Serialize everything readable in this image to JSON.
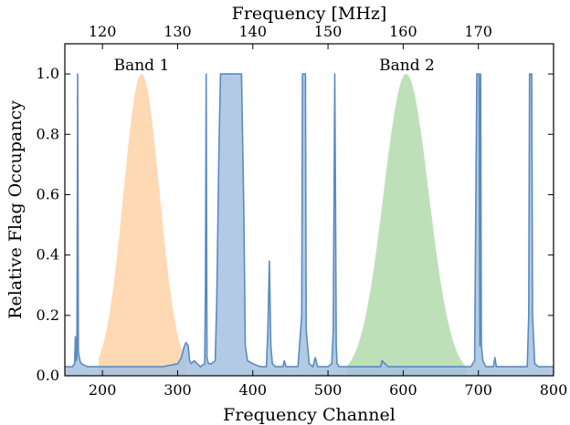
{
  "chart_data": {
    "type": "area",
    "xlabel": "Frequency Channel",
    "ylabel": "Relative Flag Occupancy",
    "top_xlabel": "Frequency [MHz]",
    "xlim": [
      150,
      800
    ],
    "ylim": [
      0,
      1.1
    ],
    "x_ticks": [
      200,
      300,
      400,
      500,
      600,
      700,
      800
    ],
    "y_ticks": [
      0.0,
      0.2,
      0.4,
      0.6,
      0.8,
      1.0
    ],
    "y_tick_labels": [
      "0.0",
      "0.2",
      "0.4",
      "0.6",
      "0.8",
      "1.0"
    ],
    "top_ticks": [
      120,
      130,
      140,
      150,
      160,
      170
    ],
    "top_axis_map": {
      "channel_at_120MHz": 200,
      "channel_per_MHz": 10
    },
    "grid": false,
    "annotations": [
      {
        "text": "Band 1",
        "x": 252,
        "y": 1.03
      },
      {
        "text": "Band 2",
        "x": 605,
        "y": 1.03
      }
    ],
    "bands": [
      {
        "name": "Band 1",
        "center": 252,
        "sigma": 24,
        "xmin": 195,
        "xmax": 310,
        "color": "#ffcc99"
      },
      {
        "name": "Band 2",
        "center": 604,
        "sigma": 30,
        "xmin": 525,
        "xmax": 685,
        "color": "#a8d5a2"
      }
    ],
    "series": [
      {
        "color": "#5b8bbf",
        "fill": "#a4c1df",
        "x": [
          150,
          160,
          163,
          164,
          165,
          166,
          167,
          168,
          170,
          172,
          180,
          200,
          220,
          240,
          260,
          280,
          300,
          305,
          308,
          311,
          314,
          316,
          318,
          322,
          326,
          330,
          336,
          337,
          338,
          339,
          341,
          345,
          350,
          352,
          355,
          357,
          359,
          362,
          385,
          388,
          390,
          393,
          400,
          410,
          418,
          420,
          422,
          424,
          426,
          430,
          440,
          442,
          444,
          450,
          460,
          465,
          466,
          467,
          470,
          471,
          475,
          480,
          483,
          486,
          490,
          500,
          505,
          507,
          508,
          509,
          510,
          511,
          512,
          515,
          520,
          540,
          560,
          570,
          572,
          580,
          600,
          620,
          640,
          660,
          680,
          690,
          695,
          697,
          698,
          701,
          702,
          703,
          704,
          706,
          710,
          720,
          722,
          724,
          730,
          750,
          765,
          767,
          768,
          771,
          772,
          775,
          780,
          800
        ],
        "y": [
          0.03,
          0.03,
          0.04,
          0.13,
          0.05,
          0.06,
          1.0,
          0.08,
          0.05,
          0.04,
          0.03,
          0.03,
          0.03,
          0.03,
          0.03,
          0.03,
          0.04,
          0.06,
          0.09,
          0.11,
          0.1,
          0.05,
          0.04,
          0.05,
          0.04,
          0.03,
          0.04,
          0.3,
          1.0,
          0.06,
          0.04,
          0.04,
          0.05,
          0.25,
          0.75,
          1.0,
          1.0,
          1.0,
          1.0,
          0.55,
          0.1,
          0.05,
          0.04,
          0.03,
          0.03,
          0.15,
          0.38,
          0.1,
          0.04,
          0.03,
          0.03,
          0.05,
          0.03,
          0.03,
          0.03,
          0.2,
          1.0,
          1.0,
          1.0,
          0.15,
          0.04,
          0.03,
          0.06,
          0.03,
          0.03,
          0.03,
          0.04,
          0.15,
          0.6,
          1.0,
          0.6,
          0.1,
          0.04,
          0.03,
          0.03,
          0.03,
          0.03,
          0.03,
          0.05,
          0.03,
          0.03,
          0.03,
          0.03,
          0.03,
          0.03,
          0.03,
          0.05,
          0.7,
          1.0,
          1.0,
          0.1,
          1.0,
          0.1,
          0.05,
          0.03,
          0.03,
          0.06,
          0.03,
          0.03,
          0.03,
          0.03,
          0.2,
          1.0,
          1.0,
          0.2,
          0.04,
          0.03,
          0.03
        ]
      }
    ]
  }
}
